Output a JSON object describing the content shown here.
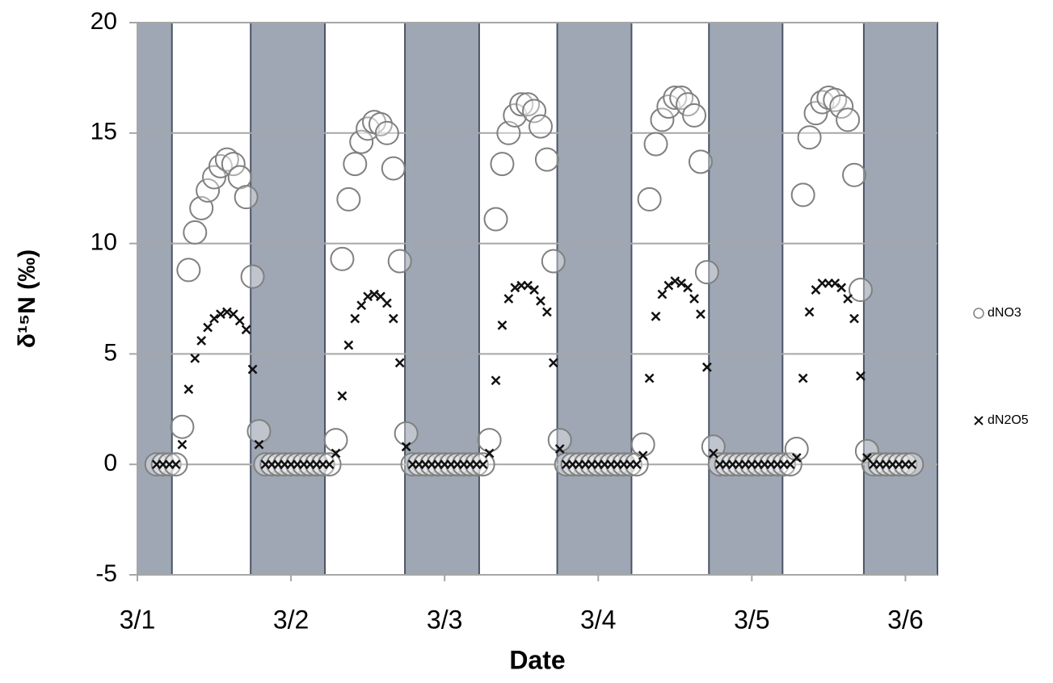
{
  "chart_data": {
    "type": "scatter",
    "x_label": "Date",
    "y_label": "δ¹⁵N (‰)",
    "xlim": [
      0,
      125
    ],
    "xticks": [
      {
        "value": 0,
        "label": "3/1"
      },
      {
        "value": 24,
        "label": "3/2"
      },
      {
        "value": 48,
        "label": "3/3"
      },
      {
        "value": 72,
        "label": "3/4"
      },
      {
        "value": 96,
        "label": "3/5"
      },
      {
        "value": 120,
        "label": "3/6"
      }
    ],
    "ylim": [
      -5,
      20
    ],
    "yticks": [
      -5,
      0,
      5,
      10,
      15,
      20
    ],
    "grid": true,
    "legend": "right",
    "shaded_intervals": [
      [
        0,
        5.4
      ],
      [
        17.7,
        29.3
      ],
      [
        41.8,
        53.4
      ],
      [
        65.6,
        77.2
      ],
      [
        89.3,
        100.8
      ],
      [
        113.5,
        125
      ]
    ],
    "shade_color": "#9ea7b3",
    "x": [
      3,
      4,
      5,
      6,
      7,
      8,
      9,
      10,
      11,
      12,
      13,
      14,
      15,
      16,
      17,
      18,
      19,
      20,
      21,
      22,
      23,
      24,
      25,
      26,
      27,
      28,
      29,
      30,
      31,
      32,
      33,
      34,
      35,
      36,
      37,
      38,
      39,
      40,
      41,
      42,
      43,
      44,
      45,
      46,
      47,
      48,
      49,
      50,
      51,
      52,
      53,
      54,
      55,
      56,
      57,
      58,
      59,
      60,
      61,
      62,
      63,
      64,
      65,
      66,
      67,
      68,
      69,
      70,
      71,
      72,
      73,
      74,
      75,
      76,
      77,
      78,
      79,
      80,
      81,
      82,
      83,
      84,
      85,
      86,
      87,
      88,
      89,
      90,
      91,
      92,
      93,
      94,
      95,
      96,
      97,
      98,
      99,
      100,
      101,
      102,
      103,
      104,
      105,
      106,
      107,
      108,
      109,
      110,
      111,
      112,
      113,
      114,
      115,
      116,
      117,
      118,
      119,
      120,
      121
    ],
    "series": [
      {
        "name": "dNO3",
        "color": "#808080",
        "marker": "circle",
        "values": [
          0,
          0,
          0,
          0,
          1.7,
          8.8,
          10.5,
          11.6,
          12.4,
          13.0,
          13.5,
          13.8,
          13.6,
          13.0,
          12.1,
          8.5,
          1.5,
          0,
          0,
          0,
          0,
          0,
          0,
          0,
          0,
          0,
          0,
          0,
          1.1,
          9.3,
          12.0,
          13.6,
          14.6,
          15.2,
          15.5,
          15.4,
          15.0,
          13.4,
          9.2,
          1.4,
          0,
          0,
          0,
          0,
          0,
          0,
          0,
          0,
          0,
          0,
          0,
          0,
          1.1,
          11.1,
          13.6,
          15.0,
          15.8,
          16.3,
          16.3,
          16.0,
          15.3,
          13.8,
          9.2,
          1.1,
          0,
          0,
          0,
          0,
          0,
          0,
          0,
          0,
          0,
          0,
          0,
          0,
          0.9,
          12.0,
          14.5,
          15.6,
          16.2,
          16.6,
          16.6,
          16.3,
          15.8,
          13.7,
          8.7,
          0.8,
          0,
          0,
          0,
          0,
          0,
          0,
          0,
          0,
          0,
          0,
          0,
          0,
          0.7,
          12.2,
          14.8,
          15.9,
          16.4,
          16.6,
          16.5,
          16.2,
          15.6,
          13.1,
          7.9,
          0.6,
          0,
          0,
          0,
          0,
          0,
          0,
          0
        ]
      },
      {
        "name": "dN2O5",
        "color": "#111111",
        "marker": "x",
        "values": [
          0,
          0,
          0,
          0,
          0.9,
          3.4,
          4.8,
          5.6,
          6.2,
          6.6,
          6.8,
          6.9,
          6.8,
          6.5,
          6.1,
          4.3,
          0.9,
          0,
          0,
          0,
          0,
          0,
          0,
          0,
          0,
          0,
          0,
          0,
          0.5,
          3.1,
          5.4,
          6.6,
          7.2,
          7.6,
          7.7,
          7.6,
          7.3,
          6.6,
          4.6,
          0.8,
          0,
          0,
          0,
          0,
          0,
          0,
          0,
          0,
          0,
          0,
          0,
          0,
          0.5,
          3.8,
          6.3,
          7.5,
          8.0,
          8.1,
          8.1,
          7.9,
          7.4,
          6.9,
          4.6,
          0.7,
          0,
          0,
          0,
          0,
          0,
          0,
          0,
          0,
          0,
          0,
          0,
          0,
          0.4,
          3.9,
          6.7,
          7.7,
          8.1,
          8.3,
          8.2,
          8.0,
          7.5,
          6.8,
          4.4,
          0.5,
          0,
          0,
          0,
          0,
          0,
          0,
          0,
          0,
          0,
          0,
          0,
          0,
          0.3,
          3.9,
          6.9,
          7.9,
          8.2,
          8.2,
          8.2,
          8.0,
          7.5,
          6.6,
          4.0,
          0.3,
          0,
          0,
          0,
          0,
          0,
          0,
          0
        ]
      }
    ]
  }
}
